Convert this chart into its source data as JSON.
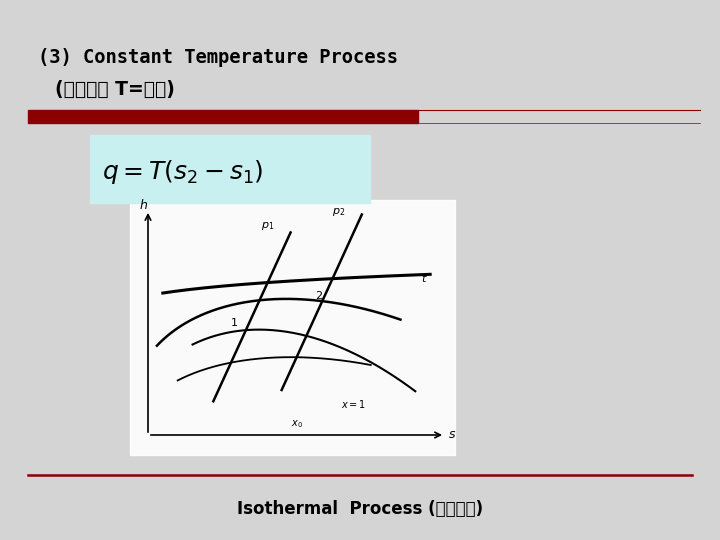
{
  "title_line1": "(3) Constant Temperature Process",
  "title_line2": "(定温过程 T=定値)",
  "footer": "Isothermal  Process (定温过程)",
  "slide_bg": "#d4d4d4",
  "formula_bg": "#c8f0f0",
  "red_bar_color": "#8b0000",
  "title_color": "#000000"
}
